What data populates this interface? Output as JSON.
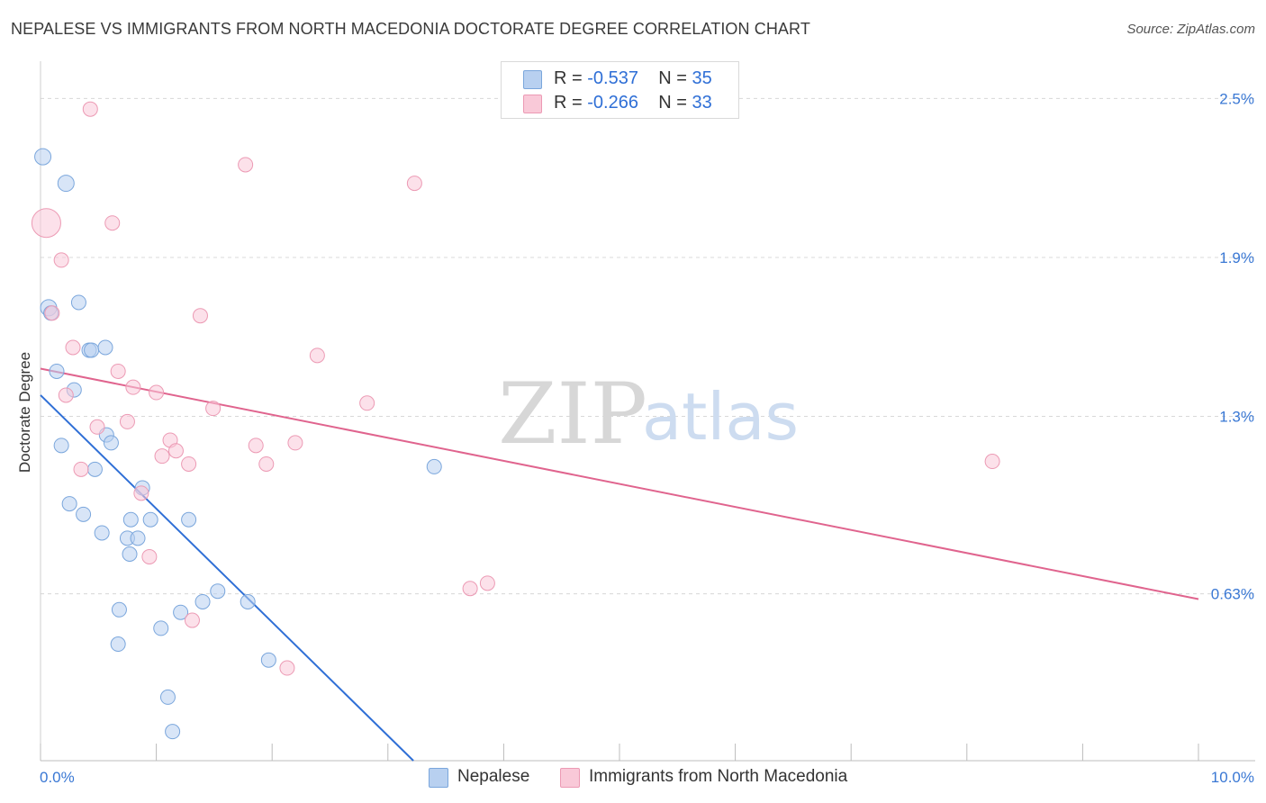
{
  "title": "NEPALESE VS IMMIGRANTS FROM NORTH MACEDONIA DOCTORATE DEGREE CORRELATION CHART",
  "source": "Source: ZipAtlas.com",
  "watermark": {
    "zip": "ZIP",
    "atlas": "atlas"
  },
  "colors": {
    "blue_fill": "#b8d0f0",
    "blue_stroke": "#7aa6dc",
    "blue_line": "#2f6fd6",
    "pink_fill": "#f9c9d8",
    "pink_stroke": "#ec9ab4",
    "pink_line": "#e0648e",
    "tick_label": "#3a78d4",
    "grid": "#d8d8d8"
  },
  "legend": {
    "r_label": "R =",
    "n_label": "N =",
    "series": [
      {
        "r": "-0.537",
        "n": "35"
      },
      {
        "r": "-0.266",
        "n": "33"
      }
    ]
  },
  "chart_data": {
    "type": "scatter",
    "title": "NEPALESE VS IMMIGRANTS FROM NORTH MACEDONIA DOCTORATE DEGREE CORRELATION CHART",
    "xlabel": "",
    "ylabel": "Doctorate Degree",
    "xlim": [
      0,
      10
    ],
    "ylim": [
      0,
      2.6
    ],
    "x_tick_labels": [
      {
        "value": 0,
        "label": "0.0%"
      },
      {
        "value": 10,
        "label": "10.0%"
      }
    ],
    "y_tick_labels": [
      {
        "value": 0.63,
        "label": "0.63%"
      },
      {
        "value": 1.3,
        "label": "1.3%"
      },
      {
        "value": 1.9,
        "label": "1.9%"
      },
      {
        "value": 2.5,
        "label": "2.5%"
      }
    ],
    "legend_position": "top-center",
    "series": [
      {
        "name": "Nepalese",
        "color": "blue",
        "r": -0.537,
        "n": 35,
        "trend": {
          "x0": 0.0,
          "y0": 1.38,
          "x1": 3.22,
          "y1": 0.0
        },
        "points": [
          {
            "x": 0.02,
            "y": 2.28,
            "s": 9
          },
          {
            "x": 0.22,
            "y": 2.18,
            "s": 9
          },
          {
            "x": 0.07,
            "y": 1.71,
            "s": 9
          },
          {
            "x": 0.09,
            "y": 1.69,
            "s": 8
          },
          {
            "x": 0.33,
            "y": 1.73,
            "s": 8
          },
          {
            "x": 0.42,
            "y": 1.55,
            "s": 8
          },
          {
            "x": 0.44,
            "y": 1.55,
            "s": 8
          },
          {
            "x": 0.56,
            "y": 1.56,
            "s": 8
          },
          {
            "x": 0.14,
            "y": 1.47,
            "s": 8
          },
          {
            "x": 0.29,
            "y": 1.4,
            "s": 8
          },
          {
            "x": 0.57,
            "y": 1.23,
            "s": 8
          },
          {
            "x": 0.61,
            "y": 1.2,
            "s": 8
          },
          {
            "x": 0.18,
            "y": 1.19,
            "s": 8
          },
          {
            "x": 0.47,
            "y": 1.1,
            "s": 8
          },
          {
            "x": 0.88,
            "y": 1.03,
            "s": 8
          },
          {
            "x": 0.25,
            "y": 0.97,
            "s": 8
          },
          {
            "x": 0.37,
            "y": 0.93,
            "s": 8
          },
          {
            "x": 0.78,
            "y": 0.91,
            "s": 8
          },
          {
            "x": 0.95,
            "y": 0.91,
            "s": 8
          },
          {
            "x": 1.28,
            "y": 0.91,
            "s": 8
          },
          {
            "x": 0.53,
            "y": 0.86,
            "s": 8
          },
          {
            "x": 0.75,
            "y": 0.84,
            "s": 8
          },
          {
            "x": 0.84,
            "y": 0.84,
            "s": 8
          },
          {
            "x": 0.77,
            "y": 0.78,
            "s": 8
          },
          {
            "x": 1.53,
            "y": 0.64,
            "s": 8
          },
          {
            "x": 1.4,
            "y": 0.6,
            "s": 8
          },
          {
            "x": 1.79,
            "y": 0.6,
            "s": 8
          },
          {
            "x": 0.68,
            "y": 0.57,
            "s": 8
          },
          {
            "x": 1.21,
            "y": 0.56,
            "s": 8
          },
          {
            "x": 1.04,
            "y": 0.5,
            "s": 8
          },
          {
            "x": 0.67,
            "y": 0.44,
            "s": 8
          },
          {
            "x": 1.97,
            "y": 0.38,
            "s": 8
          },
          {
            "x": 1.1,
            "y": 0.24,
            "s": 8
          },
          {
            "x": 1.14,
            "y": 0.11,
            "s": 8
          },
          {
            "x": 3.4,
            "y": 1.11,
            "s": 8
          }
        ]
      },
      {
        "name": "Immigrants from North Macedonia",
        "color": "pink",
        "r": -0.266,
        "n": 33,
        "trend": {
          "x0": 0.0,
          "y0": 1.48,
          "x1": 10.0,
          "y1": 0.61
        },
        "points": [
          {
            "x": 0.43,
            "y": 2.46,
            "s": 8
          },
          {
            "x": 1.77,
            "y": 2.25,
            "s": 8
          },
          {
            "x": 3.23,
            "y": 2.18,
            "s": 8
          },
          {
            "x": 0.05,
            "y": 2.03,
            "s": 16
          },
          {
            "x": 0.62,
            "y": 2.03,
            "s": 8
          },
          {
            "x": 0.18,
            "y": 1.89,
            "s": 8
          },
          {
            "x": 0.1,
            "y": 1.69,
            "s": 8
          },
          {
            "x": 1.38,
            "y": 1.68,
            "s": 8
          },
          {
            "x": 0.28,
            "y": 1.56,
            "s": 8
          },
          {
            "x": 2.39,
            "y": 1.53,
            "s": 8
          },
          {
            "x": 0.67,
            "y": 1.47,
            "s": 8
          },
          {
            "x": 0.8,
            "y": 1.41,
            "s": 8
          },
          {
            "x": 1.0,
            "y": 1.39,
            "s": 8
          },
          {
            "x": 0.22,
            "y": 1.38,
            "s": 8
          },
          {
            "x": 2.82,
            "y": 1.35,
            "s": 8
          },
          {
            "x": 1.49,
            "y": 1.33,
            "s": 8
          },
          {
            "x": 0.75,
            "y": 1.28,
            "s": 8
          },
          {
            "x": 0.49,
            "y": 1.26,
            "s": 8
          },
          {
            "x": 1.12,
            "y": 1.21,
            "s": 8
          },
          {
            "x": 2.2,
            "y": 1.2,
            "s": 8
          },
          {
            "x": 1.86,
            "y": 1.19,
            "s": 8
          },
          {
            "x": 1.17,
            "y": 1.17,
            "s": 8
          },
          {
            "x": 1.05,
            "y": 1.15,
            "s": 8
          },
          {
            "x": 1.28,
            "y": 1.12,
            "s": 8
          },
          {
            "x": 1.95,
            "y": 1.12,
            "s": 8
          },
          {
            "x": 0.35,
            "y": 1.1,
            "s": 8
          },
          {
            "x": 8.22,
            "y": 1.13,
            "s": 8
          },
          {
            "x": 0.87,
            "y": 1.01,
            "s": 8
          },
          {
            "x": 0.94,
            "y": 0.77,
            "s": 8
          },
          {
            "x": 3.86,
            "y": 0.67,
            "s": 8
          },
          {
            "x": 3.71,
            "y": 0.65,
            "s": 8
          },
          {
            "x": 1.31,
            "y": 0.53,
            "s": 8
          },
          {
            "x": 2.13,
            "y": 0.35,
            "s": 8
          }
        ]
      }
    ]
  }
}
